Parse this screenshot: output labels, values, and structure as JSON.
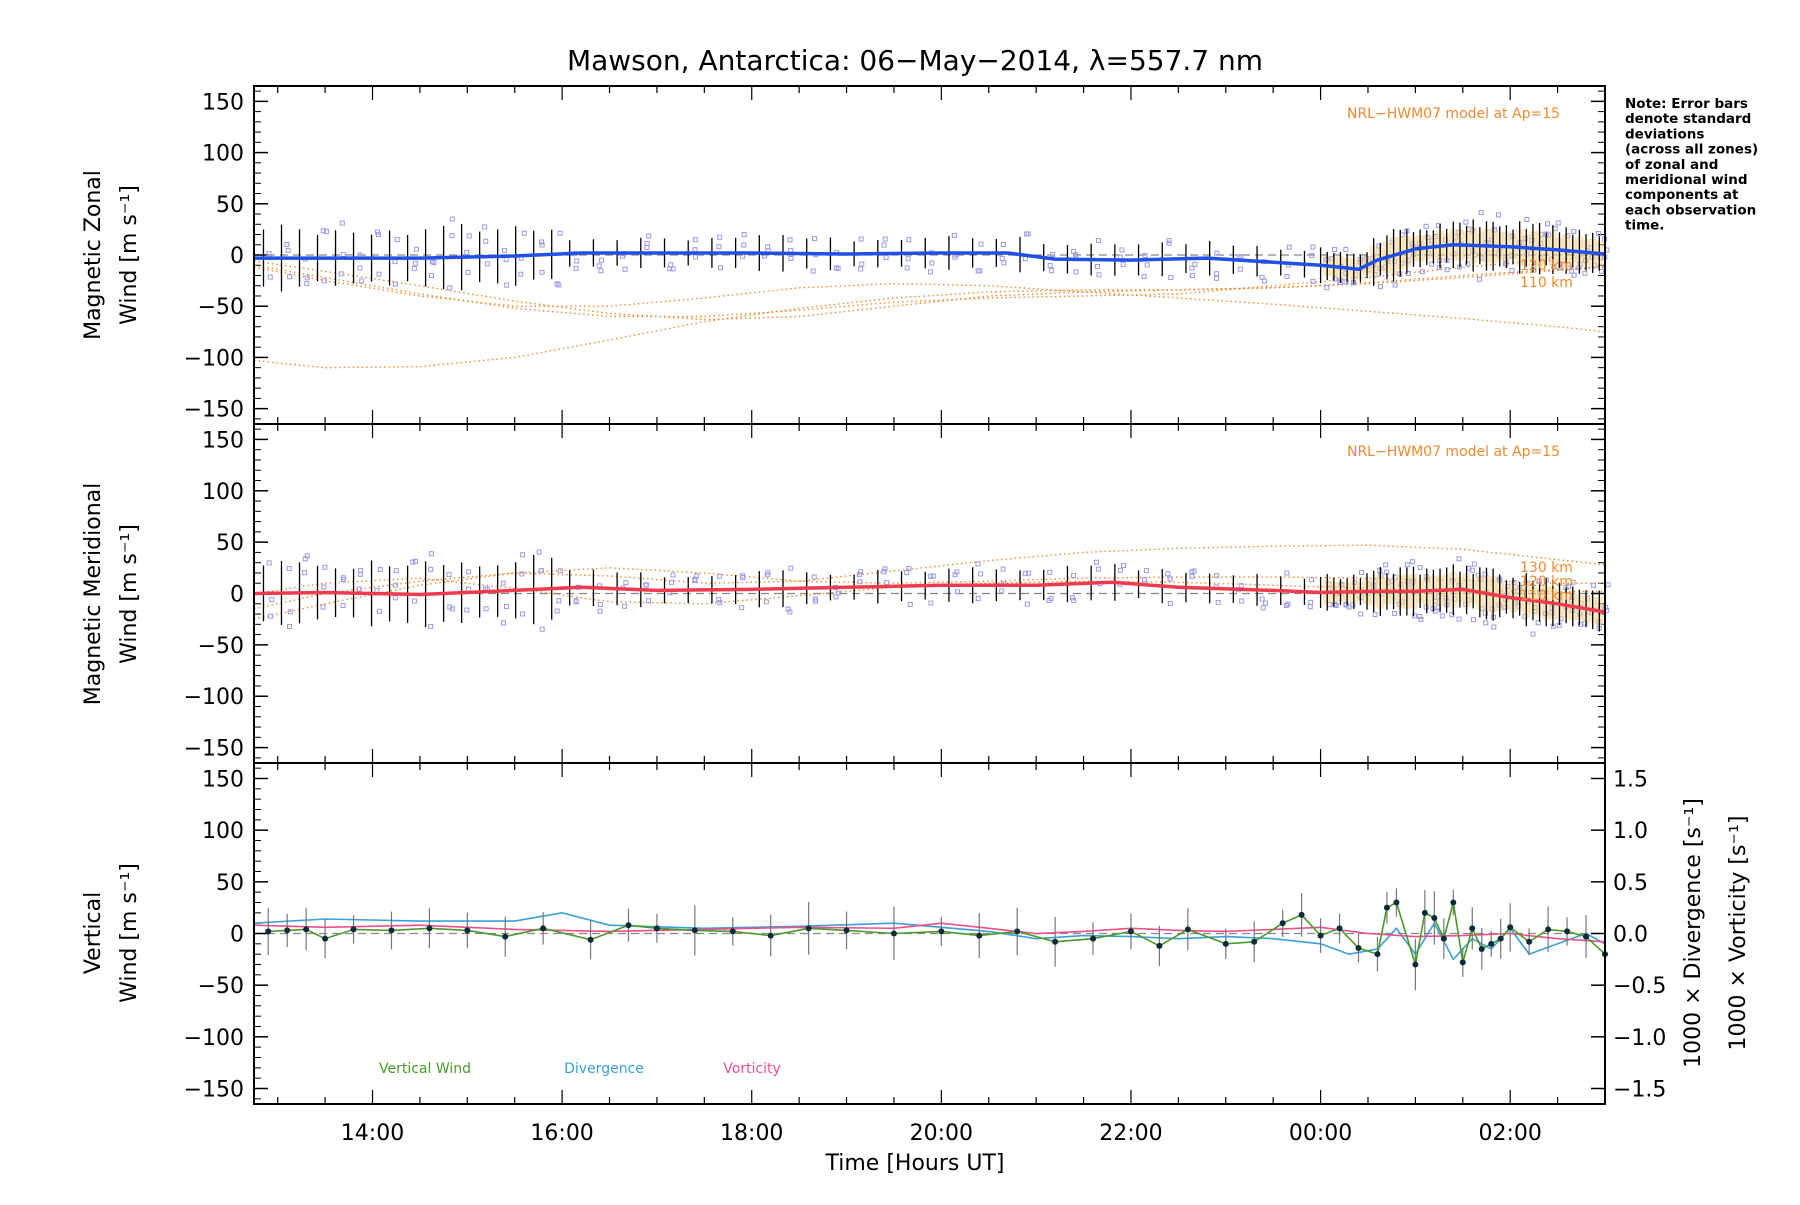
{
  "title": "Mawson, Antarctica: 06−May−2014, λ=557.7 nm",
  "note": [
    "Note: Error bars",
    "denote standard",
    "deviations",
    "(across all zones)",
    "of zonal and",
    "meridional wind",
    "components at",
    "each observation",
    "time."
  ],
  "colors": {
    "zonal": "#2050e8",
    "meridional": "#f03a4e",
    "model": "#f08a30",
    "vertical": "#4a9a2a",
    "divergence": "#3aa0d8",
    "vorticity": "#f0508a",
    "zone_points": "#9a9ae8",
    "error_bar": "#000000",
    "error_fill": "#f5d590"
  },
  "chart_data": [
    {
      "type": "line",
      "name": "zonal",
      "ylabel_line1": "Magnetic Zonal",
      "ylabel_line2": "Wind [m s⁻¹]",
      "ylim": [
        -165,
        165
      ],
      "yticks": [
        150,
        100,
        50,
        0,
        -50,
        -100,
        -150
      ],
      "model_label": "NRL−HWM07 model at Ap=15",
      "model_altitude_labels": [
        "120 km",
        "110 km"
      ],
      "mean_wind": {
        "x": [
          12.75,
          13.5,
          14.5,
          15.5,
          16.2,
          17.0,
          18.0,
          19.0,
          20.0,
          20.7,
          21.2,
          22.0,
          22.8,
          23.5,
          24.0,
          24.4,
          24.6,
          25.0,
          25.4,
          26.0,
          26.5,
          27.0
        ],
        "y": [
          -3,
          -3,
          -3,
          -1,
          2,
          2,
          2,
          1,
          2,
          2,
          -4,
          -5,
          -3,
          -7,
          -10,
          -14,
          -5,
          6,
          10,
          8,
          5,
          1
        ]
      },
      "model_curves": [
        {
          "x": [
            12.75,
            13.5,
            14.5,
            15.5,
            16.5,
            17.5,
            18.5,
            19.5,
            20.5,
            21.5,
            22.5,
            23.5,
            24.5,
            25.5,
            26.5,
            27.0
          ],
          "y": [
            -103,
            -110,
            -109,
            -100,
            -83,
            -65,
            -52,
            -42,
            -36,
            -34,
            -34,
            -32,
            -28,
            -22,
            -15,
            -12
          ]
        },
        {
          "x": [
            12.75,
            13.5,
            14.5,
            15.5,
            16.5,
            17.5,
            18.5,
            19.5,
            20.5,
            21.5,
            22.5,
            23.5,
            24.5,
            25.5,
            26.5,
            27.0
          ],
          "y": [
            -6,
            -16,
            -30,
            -45,
            -57,
            -63,
            -60,
            -50,
            -40,
            -36,
            -34,
            -32,
            -27,
            -20,
            -14,
            -11
          ]
        },
        {
          "x": [
            12.75,
            13.5,
            14.5,
            15.5,
            16.5,
            17.5,
            18.5,
            19.5,
            20.5,
            21.5,
            22.5,
            23.5,
            24.5,
            25.5,
            26.5,
            27.0
          ],
          "y": [
            -12,
            -25,
            -40,
            -50,
            -50,
            -42,
            -32,
            -28,
            -30,
            -36,
            -42,
            -48,
            -55,
            -62,
            -70,
            -75
          ]
        },
        {
          "x": [
            12.75,
            13.5,
            14.5,
            15.5,
            16.5,
            17.5,
            18.5,
            19.5,
            20.5,
            21.5,
            22.5,
            23.5,
            24.5,
            25.5,
            26.5,
            27.0
          ],
          "y": [
            -10,
            -22,
            -38,
            -52,
            -60,
            -60,
            -54,
            -46,
            -42,
            -40,
            -38,
            -30,
            -22,
            -12,
            -4,
            -2
          ]
        }
      ]
    },
    {
      "type": "line",
      "name": "meridional",
      "ylabel_line1": "Magnetic Meridional",
      "ylabel_line2": "Wind [m s⁻¹]",
      "ylim": [
        -165,
        165
      ],
      "yticks": [
        150,
        100,
        50,
        0,
        -50,
        -100,
        -150
      ],
      "model_label": "NRL−HWM07 model at Ap=15",
      "model_altitude_labels": [
        "130 km",
        "120 km",
        "110 km"
      ],
      "mean_wind": {
        "x": [
          12.75,
          13.5,
          14.5,
          15.5,
          16.2,
          17.0,
          18.0,
          19.0,
          20.0,
          21.0,
          21.8,
          22.5,
          23.5,
          24.0,
          24.5,
          25.0,
          25.5,
          26.0,
          26.5,
          27.0
        ],
        "y": [
          0,
          1,
          -1,
          3,
          6,
          3,
          4,
          6,
          8,
          8,
          11,
          6,
          3,
          1,
          2,
          2,
          4,
          -4,
          -10,
          -18
        ]
      },
      "model_curves": [
        {
          "x": [
            12.75,
            13.5,
            14.5,
            15.5,
            16.5,
            17.5,
            18.5,
            19.5,
            20.5,
            21.5,
            22.5,
            23.5,
            24.5,
            25.5,
            26.5,
            27.0
          ],
          "y": [
            -15,
            0,
            12,
            20,
            17,
            10,
            12,
            22,
            32,
            40,
            44,
            46,
            47,
            43,
            33,
            28
          ]
        },
        {
          "x": [
            12.75,
            13.5,
            14.5,
            15.5,
            16.5,
            17.5,
            18.5,
            19.5,
            20.5,
            21.5,
            22.5,
            23.5,
            24.5,
            25.5,
            26.5,
            27.0
          ],
          "y": [
            -25,
            -10,
            8,
            20,
            25,
            20,
            12,
            10,
            12,
            15,
            16,
            16,
            15,
            13,
            10,
            10
          ]
        },
        {
          "x": [
            12.75,
            13.5,
            14.5,
            15.5,
            16.5,
            17.5,
            18.5,
            19.5,
            20.5,
            21.5,
            22.5,
            23.5,
            24.5,
            25.5,
            26.5,
            27.0
          ],
          "y": [
            0,
            10,
            15,
            5,
            -8,
            -10,
            -2,
            6,
            10,
            12,
            11,
            8,
            5,
            3,
            2,
            2
          ]
        }
      ]
    },
    {
      "type": "line",
      "name": "vertical",
      "ylabel_line1": "Vertical",
      "ylabel_line2": "Wind [m s⁻¹]",
      "ylim": [
        -165,
        165
      ],
      "yticks": [
        150,
        100,
        50,
        0,
        -50,
        -100,
        -150
      ],
      "right_ylim": [
        -1.65,
        1.65
      ],
      "right_yticks": [
        "1.5",
        "1.0",
        "0.5",
        "0.0",
        "−0.5",
        "−1.0",
        "−1.5"
      ],
      "right_ylabel_divergence": "1000 × Divergence [s⁻¹]",
      "right_ylabel_vorticity": "1000 × Vorticity [s⁻¹]",
      "legend": [
        "Vertical Wind",
        "Divergence",
        "Vorticity"
      ],
      "vertical_wind": {
        "x": [
          12.9,
          13.1,
          13.3,
          13.5,
          13.8,
          14.2,
          14.6,
          15.0,
          15.4,
          15.8,
          16.3,
          16.7,
          17.0,
          17.4,
          17.8,
          18.2,
          18.6,
          19.0,
          19.5,
          20.0,
          20.4,
          20.8,
          21.2,
          21.6,
          22.0,
          22.3,
          22.6,
          23.0,
          23.3,
          23.6,
          23.8,
          24.0,
          24.2,
          24.4,
          24.6,
          24.7,
          24.8,
          25.0,
          25.1,
          25.2,
          25.3,
          25.4,
          25.5,
          25.6,
          25.7,
          25.8,
          25.9,
          26.0,
          26.2,
          26.4,
          26.6,
          26.8,
          27.0
        ],
        "y": [
          2,
          3,
          4,
          -5,
          4,
          3,
          5,
          3,
          -3,
          5,
          -6,
          8,
          5,
          3,
          2,
          -2,
          5,
          3,
          0,
          2,
          -2,
          2,
          -8,
          -5,
          2,
          -12,
          4,
          -10,
          -8,
          10,
          18,
          -2,
          5,
          -14,
          -20,
          25,
          30,
          -30,
          20,
          15,
          -5,
          30,
          -28,
          5,
          -15,
          -10,
          -5,
          6,
          -8,
          4,
          2,
          -3,
          -20
        ]
      },
      "divergence": {
        "x": [
          12.75,
          13.5,
          14.5,
          15.5,
          16.0,
          16.5,
          17.5,
          18.5,
          19.5,
          20.5,
          21.0,
          21.5,
          22.0,
          22.5,
          23.0,
          23.5,
          24.0,
          24.3,
          24.6,
          24.8,
          25.0,
          25.2,
          25.4,
          25.6,
          25.8,
          26.0,
          26.2,
          26.5,
          26.8,
          27.0
        ],
        "y": [
          0.1,
          0.14,
          0.12,
          0.12,
          0.2,
          0.08,
          0.05,
          0.07,
          0.1,
          0.02,
          -0.05,
          -0.02,
          -0.03,
          -0.05,
          -0.03,
          -0.05,
          -0.1,
          -0.2,
          -0.15,
          0.05,
          -0.2,
          0.1,
          -0.25,
          -0.05,
          -0.15,
          0.05,
          -0.2,
          -0.1,
          0.0,
          -0.1
        ]
      },
      "vorticity": {
        "x": [
          12.75,
          13.5,
          14.5,
          15.5,
          16.5,
          17.5,
          18.5,
          19.5,
          20.0,
          20.5,
          21.0,
          21.5,
          22.0,
          22.5,
          23.0,
          23.5,
          24.0,
          24.5,
          25.0,
          25.5,
          26.0,
          26.5,
          27.0
        ],
        "y": [
          0.08,
          0.06,
          0.08,
          0.04,
          0.02,
          0.04,
          0.06,
          0.05,
          0.1,
          0.05,
          0.0,
          0.02,
          0.05,
          0.03,
          0.02,
          0.04,
          0.06,
          0.0,
          -0.03,
          -0.02,
          0.0,
          -0.05,
          -0.08
        ]
      }
    }
  ],
  "x_axis": {
    "xlim": [
      12.75,
      27.0
    ],
    "ticks": [
      14,
      16,
      18,
      20,
      22,
      24,
      26
    ],
    "tick_labels": [
      "14:00",
      "16:00",
      "18:00",
      "20:00",
      "22:00",
      "00:00",
      "02:00"
    ],
    "label": "Time [Hours UT]"
  }
}
